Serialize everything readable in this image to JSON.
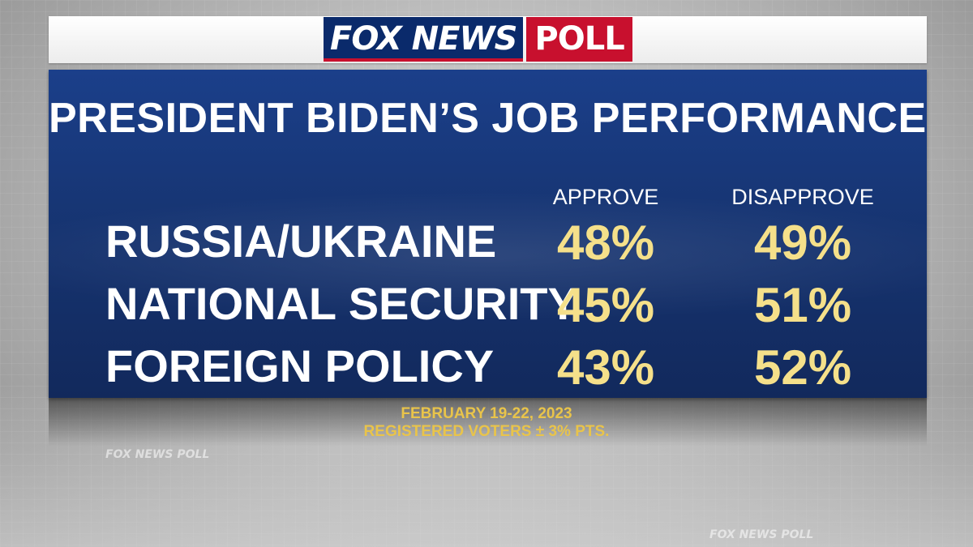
{
  "logo": {
    "fox_news": "FOX NEWS",
    "poll": "POLL"
  },
  "title": "PRESIDENT BIDEN’S JOB PERFORMANCE ON…",
  "watermark": "FOX NEWS POLL",
  "footer": {
    "date": "FEBRUARY 19-22, 2023",
    "sample": "REGISTERED VOTERS ± 3% PTS."
  },
  "colors": {
    "panel_blue": "#173675",
    "value_yellow": "#f5e08a",
    "footer_gold": "#e9c44a",
    "fox_red": "#c8102e",
    "fox_navy": "#0a2a6b"
  },
  "chart_data": {
    "type": "table",
    "title": "PRESIDENT BIDEN’S JOB PERFORMANCE ON…",
    "columns": [
      "APPROVE",
      "DISAPPROVE"
    ],
    "rows": [
      {
        "label": "RUSSIA/UKRAINE",
        "approve": "48%",
        "disapprove": "49%"
      },
      {
        "label": "NATIONAL SECURITY",
        "approve": "45%",
        "disapprove": "51%"
      },
      {
        "label": "FOREIGN POLICY",
        "approve": "43%",
        "disapprove": "52%"
      }
    ],
    "series": [
      {
        "name": "APPROVE",
        "values": [
          48,
          45,
          43
        ]
      },
      {
        "name": "DISAPPROVE",
        "values": [
          49,
          51,
          52
        ]
      }
    ],
    "categories": [
      "RUSSIA/UKRAINE",
      "NATIONAL SECURITY",
      "FOREIGN POLICY"
    ]
  }
}
